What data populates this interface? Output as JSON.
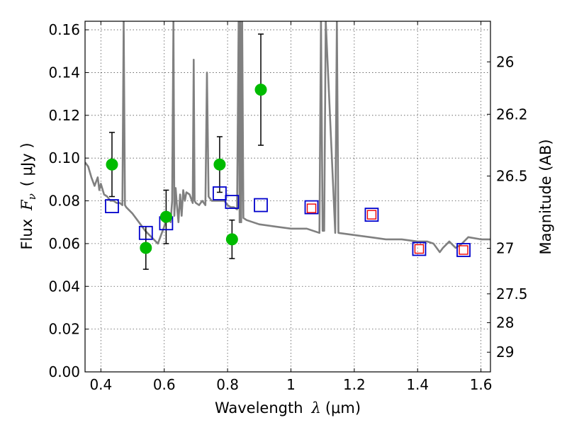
{
  "chart_data": {
    "type": "scatter",
    "xlabel_text": "Wavelength",
    "xlabel_symbol": "λ",
    "xlabel_unit": "(μm)",
    "ylabel_text": "Flux",
    "ylabel_symbol": "F",
    "ylabel_subscript": "ν",
    "ylabel_unit": "( μJy )",
    "y2label": "Magnitude (AB)",
    "xlim": [
      0.35,
      1.63
    ],
    "ylim": [
      0.0,
      0.164
    ],
    "grid": true,
    "x_ticks": [
      {
        "value": 0.4,
        "label": "0.4"
      },
      {
        "value": 0.6,
        "label": "0.6"
      },
      {
        "value": 0.8,
        "label": "0.8"
      },
      {
        "value": 1.0,
        "label": "1"
      },
      {
        "value": 1.2,
        "label": "1.2"
      },
      {
        "value": 1.4,
        "label": "1.4"
      },
      {
        "value": 1.6,
        "label": "1.6"
      }
    ],
    "y_ticks": [
      {
        "value": 0.0,
        "label": "0.00"
      },
      {
        "value": 0.02,
        "label": "0.02"
      },
      {
        "value": 0.04,
        "label": "0.04"
      },
      {
        "value": 0.06,
        "label": "0.06"
      },
      {
        "value": 0.08,
        "label": "0.08"
      },
      {
        "value": 0.1,
        "label": "0.10"
      },
      {
        "value": 0.12,
        "label": "0.12"
      },
      {
        "value": 0.14,
        "label": "0.14"
      },
      {
        "value": 0.16,
        "label": "0.16"
      }
    ],
    "y2_ticks": [
      {
        "flux": 0.145,
        "label": "26"
      },
      {
        "flux": 0.1205,
        "label": "26.2"
      },
      {
        "flux": 0.0916,
        "label": "26.5"
      },
      {
        "flux": 0.0578,
        "label": "27"
      },
      {
        "flux": 0.0365,
        "label": "27.5"
      },
      {
        "flux": 0.023,
        "label": "28"
      },
      {
        "flux": 0.0092,
        "label": "29"
      }
    ],
    "series": [
      {
        "name": "observed photometry",
        "kind": "points-with-errorbars",
        "color": "#00bb00",
        "points": [
          {
            "x": 0.435,
            "y": 0.097,
            "yerr_low": 0.015,
            "yerr_high": 0.015
          },
          {
            "x": 0.542,
            "y": 0.058,
            "yerr_low": 0.01,
            "yerr_high": 0.01
          },
          {
            "x": 0.606,
            "y": 0.0725,
            "yerr_low": 0.0125,
            "yerr_high": 0.0125
          },
          {
            "x": 0.775,
            "y": 0.097,
            "yerr_low": 0.013,
            "yerr_high": 0.013
          },
          {
            "x": 0.814,
            "y": 0.062,
            "yerr_low": 0.009,
            "yerr_high": 0.009
          },
          {
            "x": 0.905,
            "y": 0.132,
            "yerr_low": 0.026,
            "yerr_high": 0.026
          }
        ]
      },
      {
        "name": "model photometry",
        "kind": "open-squares",
        "color": "#0000cc",
        "points": [
          {
            "x": 0.435,
            "y": 0.0775
          },
          {
            "x": 0.542,
            "y": 0.065
          },
          {
            "x": 0.606,
            "y": 0.0695
          },
          {
            "x": 0.775,
            "y": 0.0835
          },
          {
            "x": 0.814,
            "y": 0.0795
          },
          {
            "x": 0.905,
            "y": 0.078
          },
          {
            "x": 1.065,
            "y": 0.077
          },
          {
            "x": 1.255,
            "y": 0.0735
          },
          {
            "x": 1.405,
            "y": 0.0575
          },
          {
            "x": 1.545,
            "y": 0.057
          }
        ]
      },
      {
        "name": "model photometry (red)",
        "kind": "small-open-squares",
        "color": "#ee0000",
        "points": [
          {
            "x": 1.065,
            "y": 0.0765
          },
          {
            "x": 1.255,
            "y": 0.0735
          },
          {
            "x": 1.405,
            "y": 0.0575
          },
          {
            "x": 1.545,
            "y": 0.057
          }
        ]
      },
      {
        "name": "model spectrum",
        "kind": "line",
        "color": "#808080",
        "x": [
          0.35,
          0.36,
          0.37,
          0.38,
          0.39,
          0.395,
          0.4,
          0.41,
          0.42,
          0.43,
          0.44,
          0.45,
          0.46,
          0.468,
          0.472,
          0.476,
          0.48,
          0.5,
          0.52,
          0.54,
          0.56,
          0.58,
          0.6,
          0.61,
          0.62,
          0.625,
          0.629,
          0.632,
          0.636,
          0.64,
          0.645,
          0.65,
          0.655,
          0.66,
          0.665,
          0.67,
          0.68,
          0.69,
          0.693,
          0.696,
          0.7,
          0.71,
          0.72,
          0.725,
          0.73,
          0.735,
          0.74,
          0.745,
          0.75,
          0.76,
          0.77,
          0.79,
          0.8,
          0.81,
          0.82,
          0.83,
          0.835,
          0.838,
          0.84,
          0.843,
          0.846,
          0.85,
          0.86,
          0.88,
          0.9,
          0.95,
          1.0,
          1.05,
          1.09,
          1.095,
          1.1,
          1.105,
          1.11,
          1.14,
          1.145,
          1.15,
          1.2,
          1.25,
          1.3,
          1.35,
          1.4,
          1.43,
          1.45,
          1.47,
          1.48,
          1.5,
          1.52,
          1.54,
          1.56,
          1.6,
          1.63
        ],
        "y": [
          0.098,
          0.096,
          0.091,
          0.087,
          0.091,
          0.085,
          0.088,
          0.083,
          0.082,
          0.08,
          0.08,
          0.079,
          0.079,
          0.078,
          0.164,
          0.078,
          0.077,
          0.074,
          0.07,
          0.066,
          0.063,
          0.06,
          0.068,
          0.073,
          0.07,
          0.08,
          0.164,
          0.073,
          0.086,
          0.078,
          0.07,
          0.083,
          0.073,
          0.085,
          0.08,
          0.084,
          0.083,
          0.079,
          0.146,
          0.08,
          0.079,
          0.078,
          0.08,
          0.079,
          0.078,
          0.14,
          0.082,
          0.081,
          0.08,
          0.08,
          0.08,
          0.08,
          0.078,
          0.077,
          0.077,
          0.076,
          0.164,
          0.07,
          0.164,
          0.07,
          0.164,
          0.072,
          0.071,
          0.07,
          0.069,
          0.068,
          0.067,
          0.067,
          0.065,
          0.164,
          0.066,
          0.066,
          0.164,
          0.065,
          0.164,
          0.065,
          0.064,
          0.063,
          0.062,
          0.062,
          0.061,
          0.061,
          0.06,
          0.056,
          0.058,
          0.061,
          0.058,
          0.06,
          0.063,
          0.062,
          0.062
        ]
      }
    ]
  }
}
